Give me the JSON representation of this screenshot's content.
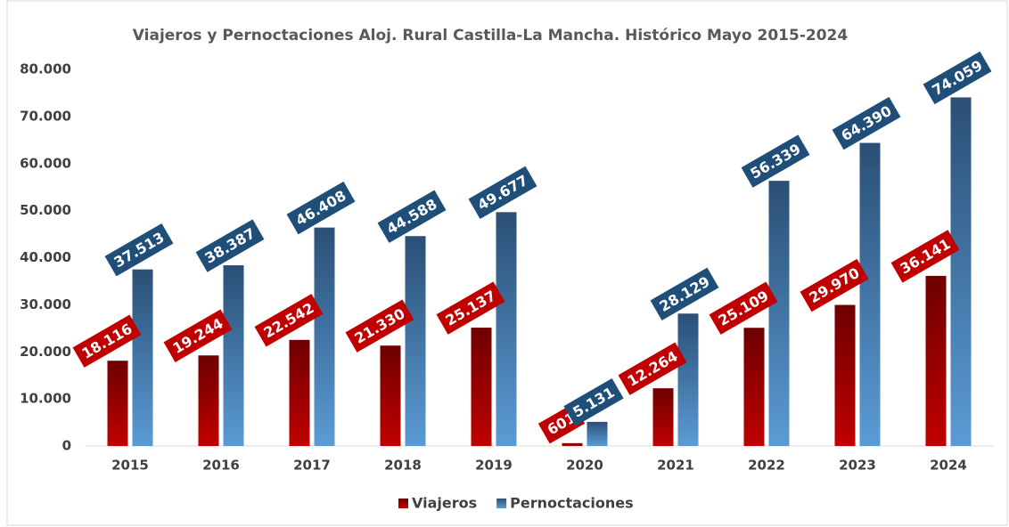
{
  "chart_data": {
    "type": "bar",
    "title": "Viajeros y Pernoctaciones Aloj. Rural Castilla-La Mancha. Histórico Mayo 2015-2024",
    "categories": [
      "2015",
      "2016",
      "2017",
      "2018",
      "2019",
      "2020",
      "2021",
      "2022",
      "2023",
      "2024"
    ],
    "series": [
      {
        "name": "Viajeros",
        "color": "#c00000",
        "values": [
          18116,
          19244,
          22542,
          21330,
          25137,
          601,
          12264,
          25109,
          29970,
          36141
        ],
        "value_labels": [
          "18.116",
          "19.244",
          "22.542",
          "21.330",
          "25.137",
          "601",
          "12.264",
          "25.109",
          "29.970",
          "36.141"
        ]
      },
      {
        "name": "Pernoctaciones",
        "color": "#5b9bd5",
        "values": [
          37513,
          38387,
          46408,
          44588,
          49677,
          5131,
          28129,
          56339,
          64390,
          74059
        ],
        "value_labels": [
          "37.513",
          "38.387",
          "46.408",
          "44.588",
          "49.677",
          "5.131",
          "28.129",
          "56.339",
          "64.390",
          "74.059"
        ]
      }
    ],
    "ylim": [
      0,
      80000
    ],
    "yticks": [
      0,
      {
        "value": 10000,
        "label": "10.000"
      },
      {
        "value": 20000,
        "label": "20.000"
      },
      {
        "value": 30000,
        "label": "30.000"
      },
      {
        "value": 40000,
        "label": "40.000"
      },
      {
        "value": 50000,
        "label": "50.000"
      },
      {
        "value": 60000,
        "label": "60.000"
      },
      {
        "value": 70000,
        "label": "70.000"
      },
      {
        "value": 80000,
        "label": "80.000"
      }
    ],
    "legend": "bottom"
  }
}
